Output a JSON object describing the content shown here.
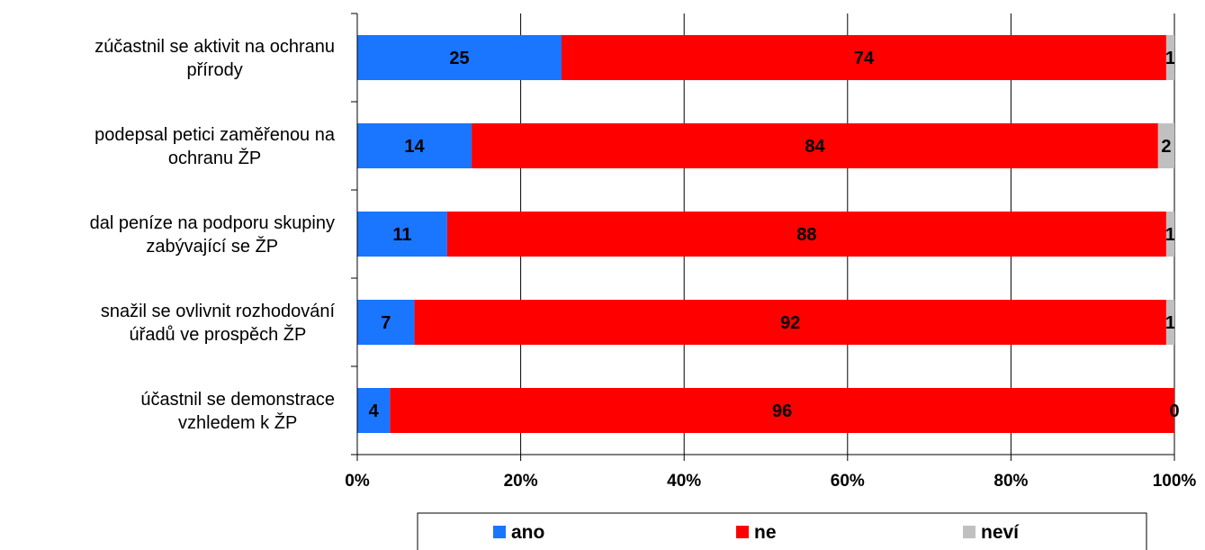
{
  "chart_data": {
    "type": "bar",
    "orientation": "horizontal",
    "stacked": "percent",
    "categories": [
      [
        "zúčastnil se aktivit na ochranu",
        "přírody"
      ],
      [
        "podepsal petici zaměřenou na",
        "ochranu ŽP"
      ],
      [
        "dal peníze na podporu skupiny",
        "zabývající se ŽP"
      ],
      [
        "snažil se ovlivnit rozhodování",
        "úřadů ve prospěch ŽP"
      ],
      [
        "účastnil se demonstrace",
        "vzhledem k ŽP"
      ]
    ],
    "series": [
      {
        "name": "ano",
        "color": "#1a75ff",
        "values": [
          25,
          14,
          11,
          7,
          4
        ]
      },
      {
        "name": "ne",
        "color": "#ff0000",
        "values": [
          74,
          84,
          88,
          92,
          96
        ]
      },
      {
        "name": "neví",
        "color": "#c0c0c0",
        "values": [
          1,
          2,
          1,
          1,
          0
        ]
      }
    ],
    "x_ticks": [
      "0%",
      "20%",
      "40%",
      "60%",
      "80%",
      "100%"
    ],
    "xlim": [
      0,
      100
    ],
    "grid": true,
    "legend_position": "bottom",
    "data_labels": true
  }
}
